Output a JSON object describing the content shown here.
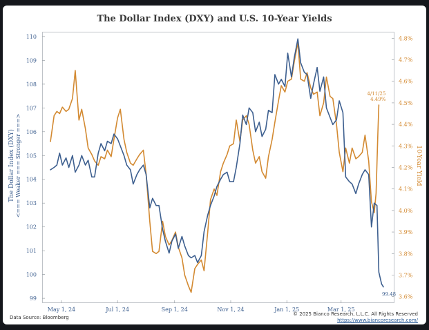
{
  "chart_data": {
    "type": "line",
    "title": "The Dollar Index (DXY) and U.S. 10-Year Yields",
    "ylabel_left": "The Dollar Index (DXY)",
    "ylabel_left_sub": "<=== Weaker === Stronger ===>",
    "ylabel_right": "10-Year Yield",
    "x_ticks": [
      "May 1, 24",
      "Jul 1, 24",
      "Sep 1, 24",
      "Nov 1, 24",
      "Jan 1, 25",
      "Mar 1, 25"
    ],
    "x_range": [
      "2024-04-10",
      "2025-04-28"
    ],
    "y_left_ticks": [
      "99",
      "100",
      "101",
      "102",
      "103",
      "104",
      "105",
      "106",
      "107",
      "108",
      "109",
      "110"
    ],
    "y_left_range": [
      98.8,
      110.2
    ],
    "y_right_ticks": [
      "3.6%",
      "3.7%",
      "3.8%",
      "3.9%",
      "4.0%",
      "4.1%",
      "4.2%",
      "4.3%",
      "4.4%",
      "4.5%",
      "4.6%",
      "4.7%",
      "4.8%"
    ],
    "y_right_range": [
      3.57,
      4.83
    ],
    "grid": false,
    "colors": {
      "dxy": "#3d5f8f",
      "yield": "#d38a32"
    },
    "series": [
      {
        "key": "dxy",
        "axis": "left",
        "points": [
          [
            "2024-04-19",
            104.4
          ],
          [
            "2024-04-23",
            104.5
          ],
          [
            "2024-04-26",
            104.6
          ],
          [
            "2024-04-29",
            105.1
          ],
          [
            "2024-05-02",
            104.6
          ],
          [
            "2024-05-06",
            104.9
          ],
          [
            "2024-05-09",
            104.5
          ],
          [
            "2024-05-13",
            105.0
          ],
          [
            "2024-05-16",
            104.3
          ],
          [
            "2024-05-20",
            104.6
          ],
          [
            "2024-05-23",
            105.0
          ],
          [
            "2024-05-27",
            104.6
          ],
          [
            "2024-05-30",
            104.8
          ],
          [
            "2024-06-03",
            104.1
          ],
          [
            "2024-06-06",
            104.1
          ],
          [
            "2024-06-10",
            105.1
          ],
          [
            "2024-06-13",
            105.5
          ],
          [
            "2024-06-17",
            105.2
          ],
          [
            "2024-06-20",
            105.6
          ],
          [
            "2024-06-24",
            105.5
          ],
          [
            "2024-06-27",
            105.9
          ],
          [
            "2024-07-01",
            105.7
          ],
          [
            "2024-07-04",
            105.4
          ],
          [
            "2024-07-08",
            105.0
          ],
          [
            "2024-07-11",
            104.6
          ],
          [
            "2024-07-15",
            104.4
          ],
          [
            "2024-07-18",
            103.8
          ],
          [
            "2024-07-22",
            104.2
          ],
          [
            "2024-07-25",
            104.4
          ],
          [
            "2024-07-29",
            104.6
          ],
          [
            "2024-08-01",
            104.2
          ],
          [
            "2024-08-05",
            102.8
          ],
          [
            "2024-08-08",
            103.2
          ],
          [
            "2024-08-12",
            102.9
          ],
          [
            "2024-08-15",
            102.9
          ],
          [
            "2024-08-19",
            101.9
          ],
          [
            "2024-08-22",
            101.4
          ],
          [
            "2024-08-26",
            100.9
          ],
          [
            "2024-08-29",
            101.4
          ],
          [
            "2024-09-02",
            101.7
          ],
          [
            "2024-09-05",
            101.1
          ],
          [
            "2024-09-09",
            101.6
          ],
          [
            "2024-09-12",
            101.2
          ],
          [
            "2024-09-16",
            100.8
          ],
          [
            "2024-09-19",
            100.7
          ],
          [
            "2024-09-23",
            100.8
          ],
          [
            "2024-09-26",
            100.5
          ],
          [
            "2024-09-30",
            100.8
          ],
          [
            "2024-10-03",
            101.8
          ],
          [
            "2024-10-07",
            102.5
          ],
          [
            "2024-10-10",
            102.9
          ],
          [
            "2024-10-14",
            103.3
          ],
          [
            "2024-10-17",
            103.7
          ],
          [
            "2024-10-21",
            104.0
          ],
          [
            "2024-10-24",
            104.2
          ],
          [
            "2024-10-28",
            104.3
          ],
          [
            "2024-10-31",
            103.9
          ],
          [
            "2024-11-04",
            103.9
          ],
          [
            "2024-11-07",
            104.5
          ],
          [
            "2024-11-11",
            105.5
          ],
          [
            "2024-11-14",
            106.7
          ],
          [
            "2024-11-18",
            106.3
          ],
          [
            "2024-11-21",
            107.0
          ],
          [
            "2024-11-25",
            106.8
          ],
          [
            "2024-11-28",
            106.0
          ],
          [
            "2024-12-02",
            106.4
          ],
          [
            "2024-12-05",
            105.8
          ],
          [
            "2024-12-09",
            106.1
          ],
          [
            "2024-12-12",
            106.9
          ],
          [
            "2024-12-16",
            106.8
          ],
          [
            "2024-12-19",
            108.4
          ],
          [
            "2024-12-23",
            108.0
          ],
          [
            "2024-12-26",
            108.2
          ],
          [
            "2024-12-30",
            107.9
          ],
          [
            "2025-01-02",
            109.3
          ],
          [
            "2025-01-06",
            108.3
          ],
          [
            "2025-01-09",
            109.1
          ],
          [
            "2025-01-13",
            109.9
          ],
          [
            "2025-01-16",
            108.9
          ],
          [
            "2025-01-20",
            108.5
          ],
          [
            "2025-01-23",
            108.4
          ],
          [
            "2025-01-27",
            107.4
          ],
          [
            "2025-01-30",
            108.0
          ],
          [
            "2025-02-03",
            108.7
          ],
          [
            "2025-02-06",
            107.7
          ],
          [
            "2025-02-10",
            108.3
          ],
          [
            "2025-02-13",
            107.0
          ],
          [
            "2025-02-17",
            106.6
          ],
          [
            "2025-02-20",
            106.3
          ],
          [
            "2025-02-24",
            106.5
          ],
          [
            "2025-02-27",
            107.3
          ],
          [
            "2025-03-03",
            106.8
          ],
          [
            "2025-03-06",
            104.1
          ],
          [
            "2025-03-10",
            103.9
          ],
          [
            "2025-03-13",
            103.8
          ],
          [
            "2025-03-17",
            103.4
          ],
          [
            "2025-03-20",
            103.8
          ],
          [
            "2025-03-24",
            104.2
          ],
          [
            "2025-03-27",
            104.4
          ],
          [
            "2025-03-31",
            104.2
          ],
          [
            "2025-04-03",
            102.0
          ],
          [
            "2025-04-06",
            103.0
          ],
          [
            "2025-04-09",
            102.9
          ],
          [
            "2025-04-11",
            100.1
          ],
          [
            "2025-04-14",
            99.6
          ],
          [
            "2025-04-16",
            99.48
          ]
        ]
      },
      {
        "key": "yield",
        "axis": "right",
        "points": [
          [
            "2024-04-19",
            4.32
          ],
          [
            "2024-04-23",
            4.44
          ],
          [
            "2024-04-26",
            4.46
          ],
          [
            "2024-04-29",
            4.45
          ],
          [
            "2024-05-02",
            4.48
          ],
          [
            "2024-05-06",
            4.46
          ],
          [
            "2024-05-09",
            4.47
          ],
          [
            "2024-05-13",
            4.52
          ],
          [
            "2024-05-16",
            4.65
          ],
          [
            "2024-05-20",
            4.42
          ],
          [
            "2024-05-23",
            4.47
          ],
          [
            "2024-05-27",
            4.38
          ],
          [
            "2024-05-30",
            4.29
          ],
          [
            "2024-06-03",
            4.26
          ],
          [
            "2024-06-06",
            4.23
          ],
          [
            "2024-06-10",
            4.21
          ],
          [
            "2024-06-13",
            4.25
          ],
          [
            "2024-06-17",
            4.24
          ],
          [
            "2024-06-20",
            4.28
          ],
          [
            "2024-06-24",
            4.25
          ],
          [
            "2024-06-27",
            4.33
          ],
          [
            "2024-07-01",
            4.43
          ],
          [
            "2024-07-04",
            4.47
          ],
          [
            "2024-07-08",
            4.33
          ],
          [
            "2024-07-11",
            4.27
          ],
          [
            "2024-07-15",
            4.22
          ],
          [
            "2024-07-18",
            4.21
          ],
          [
            "2024-07-22",
            4.24
          ],
          [
            "2024-07-25",
            4.26
          ],
          [
            "2024-07-29",
            4.28
          ],
          [
            "2024-08-01",
            4.17
          ],
          [
            "2024-08-05",
            3.95
          ],
          [
            "2024-08-08",
            3.81
          ],
          [
            "2024-08-12",
            3.8
          ],
          [
            "2024-08-15",
            3.81
          ],
          [
            "2024-08-19",
            3.95
          ],
          [
            "2024-08-22",
            3.88
          ],
          [
            "2024-08-26",
            3.84
          ],
          [
            "2024-08-29",
            3.86
          ],
          [
            "2024-09-02",
            3.9
          ],
          [
            "2024-09-05",
            3.83
          ],
          [
            "2024-09-09",
            3.78
          ],
          [
            "2024-09-12",
            3.7
          ],
          [
            "2024-09-16",
            3.65
          ],
          [
            "2024-09-19",
            3.62
          ],
          [
            "2024-09-23",
            3.73
          ],
          [
            "2024-09-26",
            3.75
          ],
          [
            "2024-09-30",
            3.77
          ],
          [
            "2024-10-03",
            3.72
          ],
          [
            "2024-10-07",
            3.9
          ],
          [
            "2024-10-10",
            4.05
          ],
          [
            "2024-10-14",
            4.1
          ],
          [
            "2024-10-17",
            4.07
          ],
          [
            "2024-10-21",
            4.18
          ],
          [
            "2024-10-24",
            4.22
          ],
          [
            "2024-10-28",
            4.26
          ],
          [
            "2024-10-31",
            4.3
          ],
          [
            "2024-11-04",
            4.31
          ],
          [
            "2024-11-07",
            4.42
          ],
          [
            "2024-11-11",
            4.32
          ],
          [
            "2024-11-14",
            4.42
          ],
          [
            "2024-11-18",
            4.44
          ],
          [
            "2024-11-21",
            4.4
          ],
          [
            "2024-11-25",
            4.28
          ],
          [
            "2024-11-28",
            4.22
          ],
          [
            "2024-12-02",
            4.25
          ],
          [
            "2024-12-05",
            4.18
          ],
          [
            "2024-12-09",
            4.15
          ],
          [
            "2024-12-12",
            4.25
          ],
          [
            "2024-12-16",
            4.33
          ],
          [
            "2024-12-19",
            4.41
          ],
          [
            "2024-12-23",
            4.51
          ],
          [
            "2024-12-26",
            4.58
          ],
          [
            "2024-12-30",
            4.55
          ],
          [
            "2025-01-02",
            4.6
          ],
          [
            "2025-01-06",
            4.61
          ],
          [
            "2025-01-09",
            4.69
          ],
          [
            "2025-01-13",
            4.78
          ],
          [
            "2025-01-16",
            4.61
          ],
          [
            "2025-01-20",
            4.6
          ],
          [
            "2025-01-23",
            4.64
          ],
          [
            "2025-01-27",
            4.57
          ],
          [
            "2025-01-30",
            4.54
          ],
          [
            "2025-02-03",
            4.55
          ],
          [
            "2025-02-06",
            4.44
          ],
          [
            "2025-02-10",
            4.5
          ],
          [
            "2025-02-13",
            4.62
          ],
          [
            "2025-02-17",
            4.53
          ],
          [
            "2025-02-20",
            4.52
          ],
          [
            "2025-02-24",
            4.4
          ],
          [
            "2025-02-27",
            4.27
          ],
          [
            "2025-03-03",
            4.18
          ],
          [
            "2025-03-06",
            4.29
          ],
          [
            "2025-03-10",
            4.22
          ],
          [
            "2025-03-13",
            4.29
          ],
          [
            "2025-03-17",
            4.24
          ],
          [
            "2025-03-20",
            4.25
          ],
          [
            "2025-03-24",
            4.27
          ],
          [
            "2025-03-27",
            4.35
          ],
          [
            "2025-03-31",
            4.23
          ],
          [
            "2025-04-03",
            4.04
          ],
          [
            "2025-04-06",
            3.99
          ],
          [
            "2025-04-08",
            4.08
          ],
          [
            "2025-04-10",
            4.36
          ],
          [
            "2025-04-11",
            4.49
          ]
        ]
      }
    ],
    "annotations": [
      {
        "series": "dxy",
        "text": "99.48"
      },
      {
        "series": "yield",
        "text": "4/11/25",
        "text2": "4.49%"
      }
    ]
  },
  "footer": {
    "source": "Data Source: Bloomberg",
    "copyright": "© 2025 Bianco Research, L.L.C. All Rights Reserved",
    "url": "https://www.biancoresearch.com/"
  }
}
